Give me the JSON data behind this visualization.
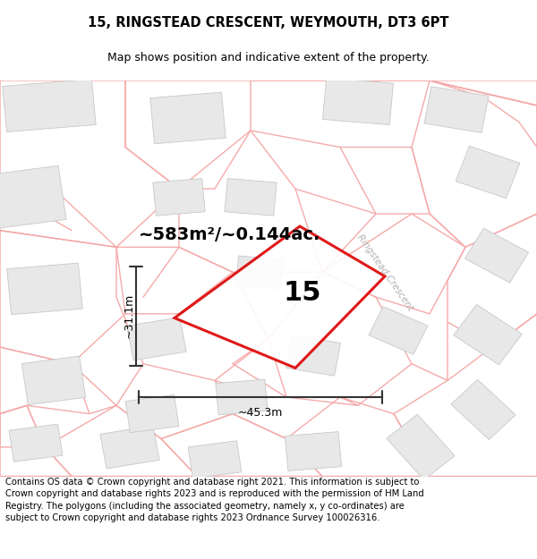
{
  "title_line1": "15, RINGSTEAD CRESCENT, WEYMOUTH, DT3 6PT",
  "title_line2": "Map shows position and indicative extent of the property.",
  "footer_text": "Contains OS data © Crown copyright and database right 2021. This information is subject to Crown copyright and database rights 2023 and is reproduced with the permission of HM Land Registry. The polygons (including the associated geometry, namely x, y co-ordinates) are subject to Crown copyright and database rights 2023 Ordnance Survey 100026316.",
  "area_label": "~583m²/~0.144ac.",
  "width_label": "~45.3m",
  "height_label": "~31.1m",
  "plot_number": "15",
  "bg_color": "#ffffff",
  "map_bg": "#ffffff",
  "building_color": "#e8e8e8",
  "building_edge": "#c8c8c8",
  "road_line_color": "#f5aaaa",
  "plot_outline_color": "#dd0000",
  "dim_line_color": "#333333",
  "street_label": "Ringstead Crescent",
  "title_fontsize": 10.5,
  "subtitle_fontsize": 9,
  "footer_fontsize": 7.2,
  "area_fontsize": 14,
  "plot_num_fontsize": 22,
  "dim_fontsize": 9,
  "street_fontsize": 7.5
}
